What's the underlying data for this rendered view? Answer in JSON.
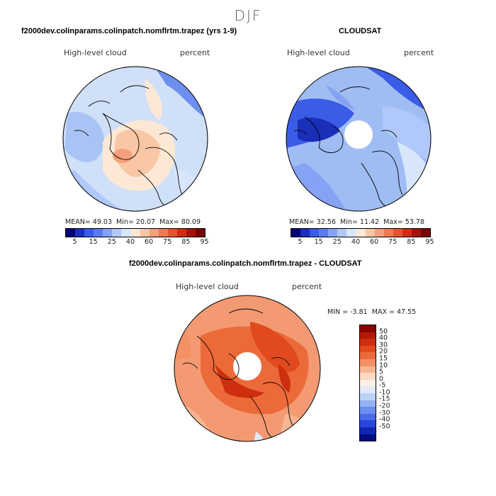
{
  "figure": {
    "season": "DJF",
    "panel_model": {
      "title": "f2000dev.colinparams.colinpatch.nomflrtm.trapez (yrs 1-9)",
      "variable": "High-level cloud",
      "units": "percent",
      "stats": {
        "mean_label": "MEAN=",
        "mean": "49.03",
        "min_label": "Min=",
        "min": "20.07",
        "max_label": "Max=",
        "max": "80.09"
      }
    },
    "panel_obs": {
      "title": "CLOUDSAT",
      "variable": "High-level cloud",
      "units": "percent",
      "stats": {
        "mean_label": "MEAN=",
        "mean": "32.56",
        "min_label": "Min=",
        "min": "11.42",
        "max_label": "Max=",
        "max": "53.78"
      }
    },
    "panel_diff": {
      "title": "f2000dev.colinparams.colinpatch.nomflrtm.trapez - CLOUDSAT",
      "variable": "High-level cloud",
      "units": "percent",
      "minmax": {
        "min_label": "MIN =",
        "min": "-3.81",
        "max_label": "MAX =",
        "max": "47.55"
      }
    },
    "colorbar_top": {
      "colors": [
        "#00007a",
        "#1a2fb8",
        "#3a5ce6",
        "#5a7cf0",
        "#85a3f5",
        "#b0c8fa",
        "#d8e6fc",
        "#fde8d6",
        "#f9c6a6",
        "#f4a07a",
        "#ec7a52",
        "#e2542e",
        "#cc2e12",
        "#a3150a",
        "#7a0000"
      ],
      "tick_labels": [
        "5",
        "15",
        "25",
        "40",
        "60",
        "75",
        "85",
        "95"
      ]
    },
    "colorbar_diff": {
      "colors": [
        "#8b0000",
        "#b01a05",
        "#cc2e0e",
        "#e04a1e",
        "#ec6a3a",
        "#f39064",
        "#f7b592",
        "#fbd9c2",
        "#fdf0e4",
        "#dfe9fb",
        "#bcd3f8",
        "#94b3f3",
        "#6d8ff0",
        "#4a6aea",
        "#2a47db",
        "#1226b5",
        "#000c80"
      ],
      "tick_labels": [
        "50",
        "40",
        "30",
        "20",
        "15",
        "10",
        "5",
        "0",
        "-5",
        "-10",
        "-15",
        "-20",
        "-30",
        "-40",
        "-50"
      ]
    },
    "map_palette": {
      "ocean_outline": "#000000",
      "model_base": "#cfe0f8",
      "obs_base": "#9fbdf3",
      "diff_base": "#f39a72"
    }
  }
}
